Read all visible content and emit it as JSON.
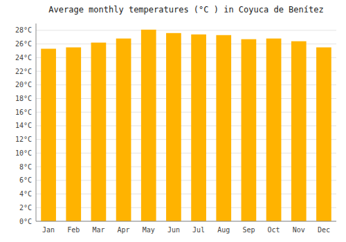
{
  "chart_data": {
    "type": "bar",
    "title": "Average monthly temperatures (°C ) in Coyuca de Benítez",
    "categories": [
      "Jan",
      "Feb",
      "Mar",
      "Apr",
      "May",
      "Jun",
      "Jul",
      "Aug",
      "Sep",
      "Oct",
      "Nov",
      "Dec"
    ],
    "values": [
      25.3,
      25.5,
      26.2,
      26.8,
      28.1,
      27.6,
      27.4,
      27.3,
      26.7,
      26.8,
      26.4,
      25.5
    ],
    "color": "#FFB300",
    "ylim": [
      0,
      29
    ],
    "yticks": [
      {
        "value": 0,
        "label": "0°C"
      },
      {
        "value": 2,
        "label": "2°C"
      },
      {
        "value": 4,
        "label": "4°C"
      },
      {
        "value": 6,
        "label": "6°C"
      },
      {
        "value": 8,
        "label": "8°C"
      },
      {
        "value": 10,
        "label": "10°C"
      },
      {
        "value": 12,
        "label": "12°C"
      },
      {
        "value": 14,
        "label": "14°C"
      },
      {
        "value": 16,
        "label": "16°C"
      },
      {
        "value": 18,
        "label": "18°C"
      },
      {
        "value": 20,
        "label": "20°C"
      },
      {
        "value": 22,
        "label": "22°C"
      },
      {
        "value": 24,
        "label": "24°C"
      },
      {
        "value": 26,
        "label": "26°C"
      },
      {
        "value": 28,
        "label": "28°C"
      }
    ],
    "grid": true
  }
}
